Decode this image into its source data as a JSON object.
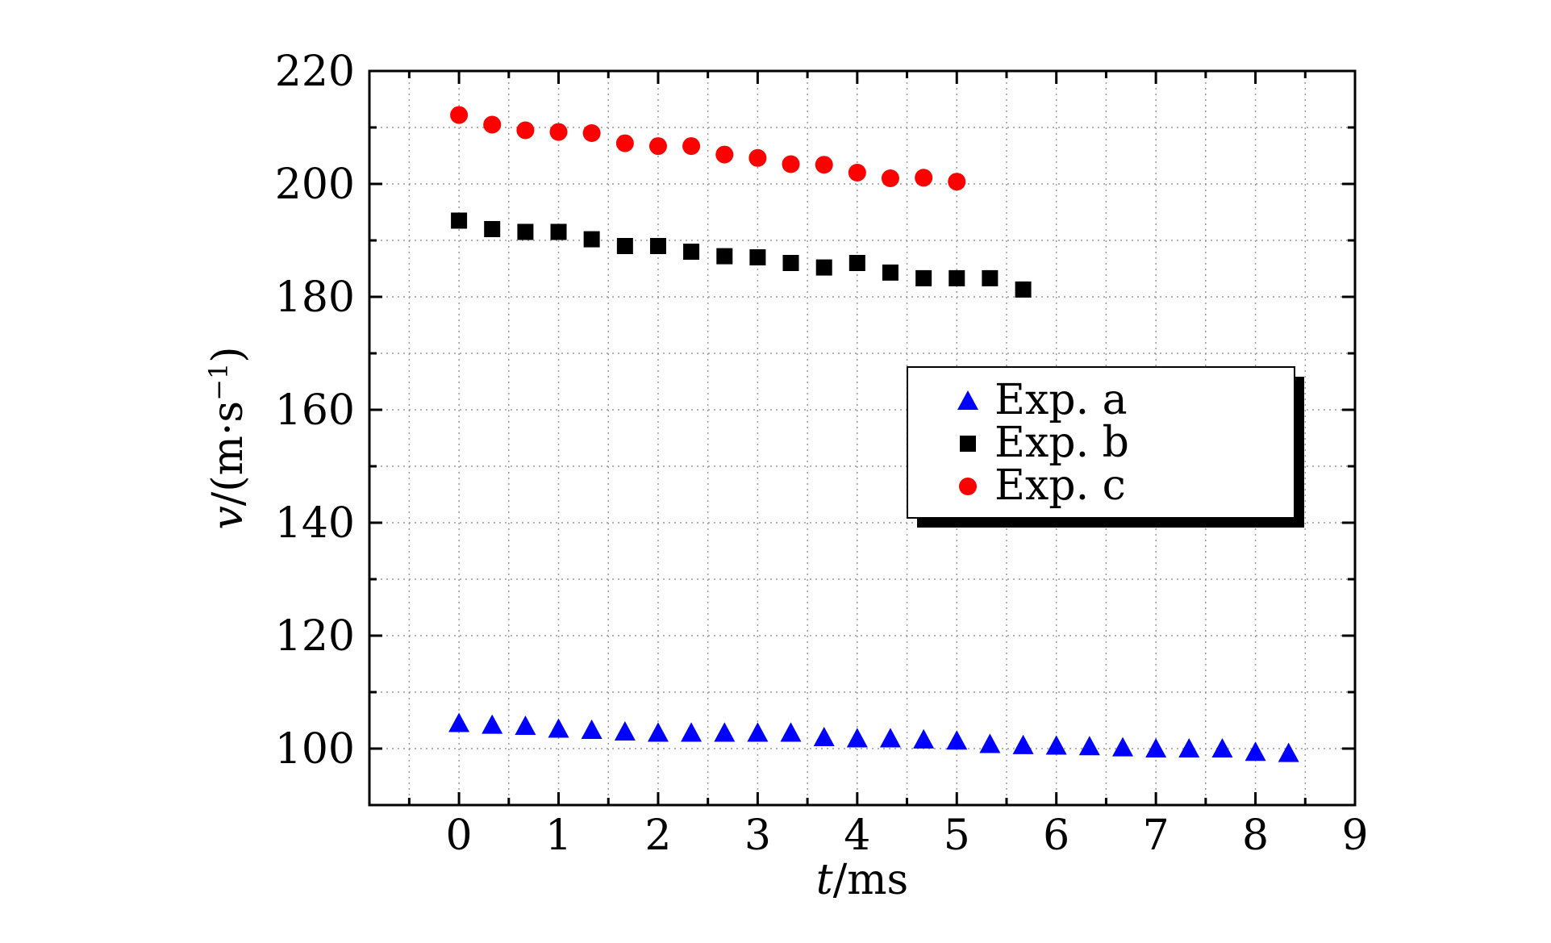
{
  "chart_data": {
    "type": "scatter",
    "xlabel_var": "t",
    "xlabel_unit": "/ms",
    "ylabel_var": "v",
    "ylabel_unit": "/(m·s",
    "ylabel_exp": "−1",
    "ylabel_close": ")",
    "xlim": [
      -0.9,
      9
    ],
    "ylim": [
      90,
      220
    ],
    "x_ticks": [
      0,
      1,
      2,
      3,
      4,
      5,
      6,
      7,
      8,
      9
    ],
    "y_ticks": [
      100,
      120,
      140,
      160,
      180,
      200,
      220
    ],
    "grid": true,
    "legend_position": "center-right",
    "series": [
      {
        "name": "Exp. a",
        "marker": "triangle",
        "color": "#0000ff",
        "x": [
          0,
          0.333,
          0.667,
          1.0,
          1.333,
          1.667,
          2.0,
          2.333,
          2.667,
          3.0,
          3.333,
          3.667,
          4.0,
          4.333,
          4.667,
          5.0,
          5.333,
          5.667,
          6.0,
          6.333,
          6.667,
          7.0,
          7.333,
          7.667,
          8.0,
          8.333
        ],
        "y": [
          104.5,
          104.2,
          104.0,
          103.5,
          103.3,
          103.0,
          102.8,
          102.8,
          102.8,
          102.8,
          102.8,
          102.0,
          101.8,
          101.8,
          101.6,
          101.4,
          100.8,
          100.6,
          100.5,
          100.4,
          100.2,
          100.0,
          100.0,
          100.0,
          99.4,
          99.2
        ]
      },
      {
        "name": "Exp. b",
        "marker": "square",
        "color": "#000000",
        "x": [
          0,
          0.333,
          0.667,
          1.0,
          1.333,
          1.667,
          2.0,
          2.333,
          2.667,
          3.0,
          3.333,
          3.667,
          4.0,
          4.333,
          4.667,
          5.0,
          5.333,
          5.667
        ],
        "y": [
          193.5,
          192.0,
          191.5,
          191.5,
          190.2,
          189.0,
          189.0,
          188.0,
          187.2,
          187.0,
          186.0,
          185.2,
          186.0,
          184.3,
          183.3,
          183.3,
          183.3,
          181.3
        ]
      },
      {
        "name": "Exp. c",
        "marker": "circle",
        "color": "#ff0000",
        "x": [
          0,
          0.333,
          0.667,
          1.0,
          1.333,
          1.667,
          2.0,
          2.333,
          2.667,
          3.0,
          3.333,
          3.667,
          4.0,
          4.333,
          4.667,
          5.0
        ],
        "y": [
          212.2,
          210.5,
          209.5,
          209.2,
          209.0,
          207.2,
          206.7,
          206.7,
          205.2,
          204.6,
          203.5,
          203.4,
          202.0,
          201.0,
          201.1,
          200.4
        ]
      }
    ]
  }
}
